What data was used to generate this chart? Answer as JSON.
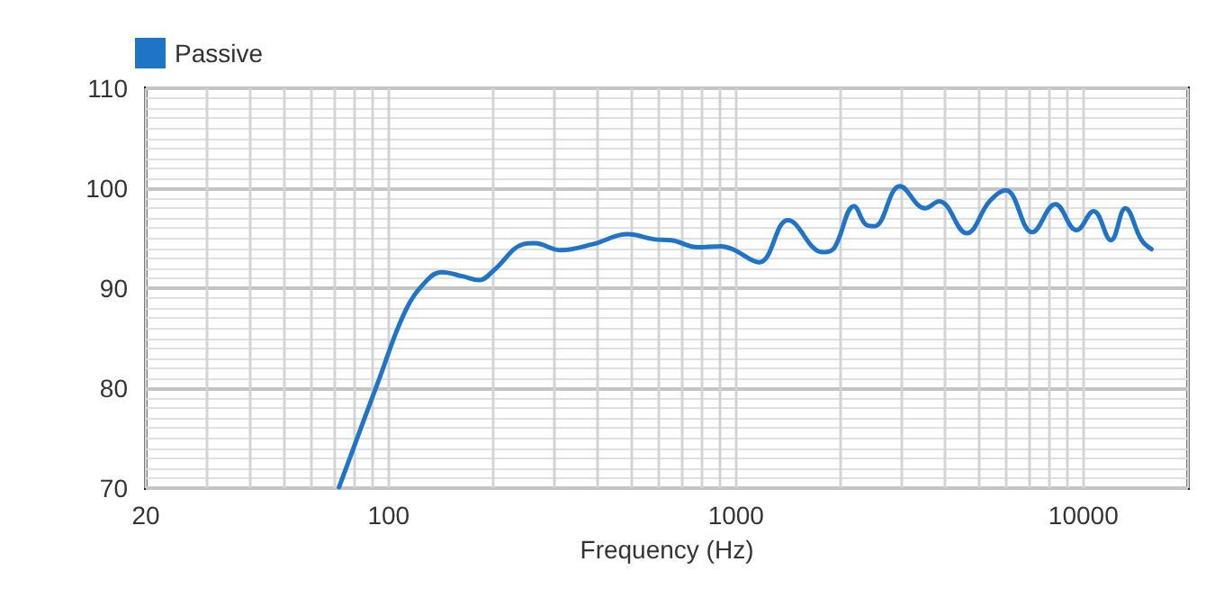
{
  "chart_data": {
    "type": "line",
    "xlabel": "Frequency (Hz)",
    "log": "x",
    "grid": true,
    "legend": "top left",
    "xlim": [
      20,
      20000
    ],
    "xticks": [
      20,
      100,
      1000,
      10000
    ],
    "ylim": [
      70,
      110
    ],
    "yticks": [
      70,
      80,
      90,
      100,
      110
    ],
    "series": [
      {
        "name": "Passive",
        "color": "#1f74c6",
        "x": [
          72,
          93,
          112,
          129,
          142,
          163,
          182,
          201,
          244,
          263,
          313,
          387,
          488,
          580,
          652,
          775,
          904,
          978,
          1166,
          1411,
          1776,
          1915,
          2187,
          2380,
          2503,
          2963,
          3500,
          3843,
          4610,
          5370,
          5980,
          7120,
          8300,
          9550,
          10700,
          12000,
          13200,
          14700,
          15700
        ],
        "values": [
          70.1,
          80.5,
          87.8,
          90.8,
          91.6,
          91.2,
          90.8,
          91.8,
          94.4,
          94.5,
          93.8,
          94.4,
          95.4,
          94.9,
          94.8,
          94.1,
          94.2,
          93.9,
          92.6,
          96.8,
          93.6,
          94.0,
          98.2,
          96.3,
          96.2,
          100.2,
          98.0,
          98.7,
          95.5,
          98.7,
          99.8,
          95.6,
          98.4,
          95.8,
          97.7,
          94.8,
          98.0,
          94.8,
          93.9
        ]
      }
    ]
  }
}
